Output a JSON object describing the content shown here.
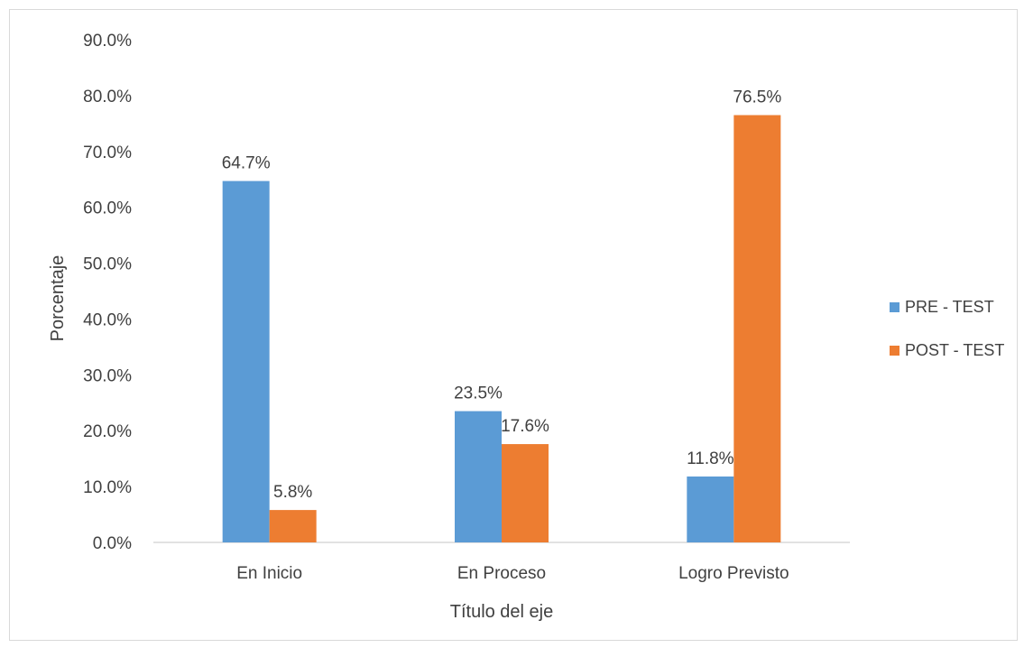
{
  "chart_data": {
    "type": "bar",
    "title": "",
    "xlabel": "Título del eje",
    "ylabel": "Porcentaje",
    "categories": [
      "En Inicio",
      "En Proceso",
      "Logro Previsto"
    ],
    "series": [
      {
        "name": "PRE - TEST",
        "color": "#5B9BD5",
        "values": [
          64.7,
          23.5,
          11.8
        ],
        "labels": [
          "64.7%",
          "23.5%",
          "11.8%"
        ]
      },
      {
        "name": "POST - TEST",
        "color": "#ED7D31",
        "values": [
          5.8,
          17.6,
          76.5
        ],
        "labels": [
          "5.8%",
          "17.6%",
          "76.5%"
        ]
      }
    ],
    "ylim": [
      0,
      90
    ],
    "yticks": [
      "0.0%",
      "10.0%",
      "20.0%",
      "30.0%",
      "40.0%",
      "50.0%",
      "60.0%",
      "70.0%",
      "80.0%",
      "90.0%"
    ],
    "grid": false,
    "legend_position": "right"
  }
}
